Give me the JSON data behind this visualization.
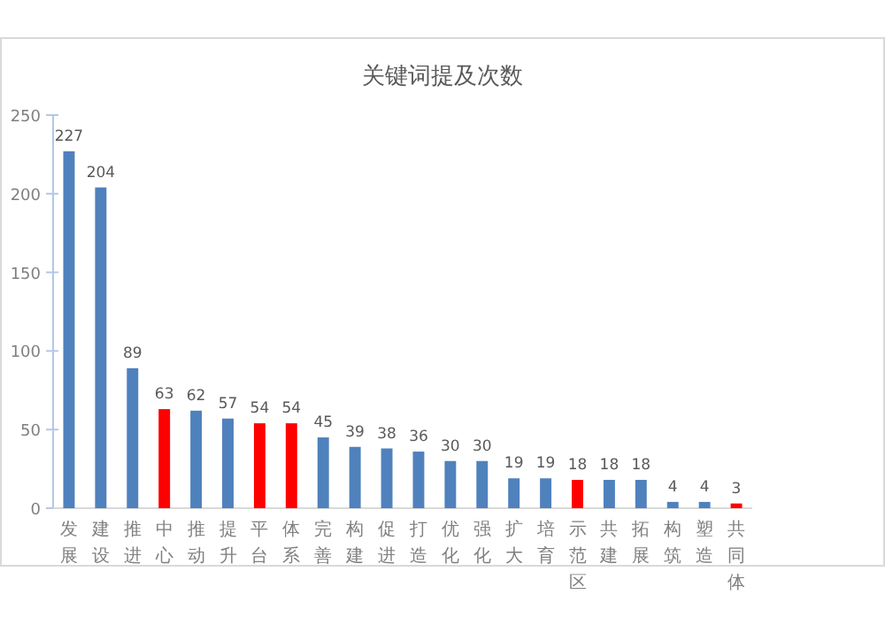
{
  "chart_data": {
    "type": "bar",
    "title": "关键词提及次数",
    "categories": [
      "发展",
      "建设",
      "推进",
      "中心",
      "推动",
      "提升",
      "平台",
      "体系",
      "完善",
      "构建",
      "促进",
      "打造",
      "优化",
      "强化",
      "扩大",
      "培育",
      "示范区",
      "共建",
      "拓展",
      "构筑",
      "塑造",
      "共同体"
    ],
    "values": [
      227,
      204,
      89,
      63,
      62,
      57,
      54,
      54,
      45,
      39,
      38,
      36,
      30,
      30,
      19,
      19,
      18,
      18,
      18,
      4,
      4,
      3
    ],
    "colors": [
      "#4f81bd",
      "#4f81bd",
      "#4f81bd",
      "#ff0000",
      "#4f81bd",
      "#4f81bd",
      "#ff0000",
      "#ff0000",
      "#4f81bd",
      "#4f81bd",
      "#4f81bd",
      "#4f81bd",
      "#4f81bd",
      "#4f81bd",
      "#4f81bd",
      "#4f81bd",
      "#ff0000",
      "#4f81bd",
      "#4f81bd",
      "#4f81bd",
      "#4f81bd",
      "#ff0000"
    ],
    "ylim": [
      0,
      250
    ],
    "yticks": [
      0,
      50,
      100,
      150,
      200,
      250
    ],
    "data_labels": true,
    "grid": false
  }
}
